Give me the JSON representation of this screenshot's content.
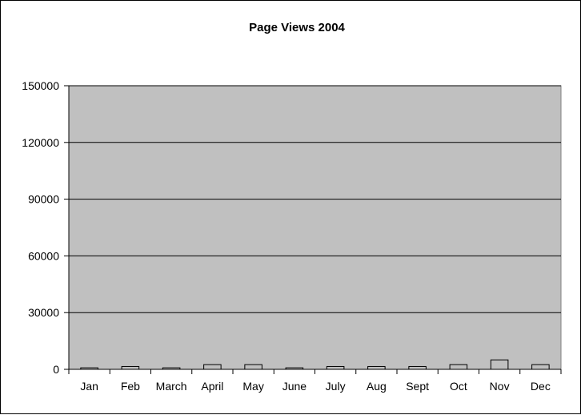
{
  "chart_data": {
    "type": "bar",
    "title": "Page Views 2004",
    "xlabel": "",
    "ylabel": "",
    "categories": [
      "Jan",
      "Feb",
      "March",
      "April",
      "May",
      "June",
      "July",
      "Aug",
      "Sept",
      "Oct",
      "Nov",
      "Dec"
    ],
    "values": [
      800,
      1500,
      800,
      2500,
      2500,
      800,
      1500,
      1500,
      1500,
      2500,
      5000,
      2500
    ],
    "ylim": [
      0,
      150000
    ],
    "yticks": [
      0,
      30000,
      60000,
      90000,
      120000,
      150000
    ],
    "grid": true,
    "legend": "none",
    "colors": {
      "plot_background": "#c0c0c0",
      "bar_fill": "#c0c0c0",
      "bar_stroke": "#000000",
      "gridline": "#000000"
    }
  }
}
